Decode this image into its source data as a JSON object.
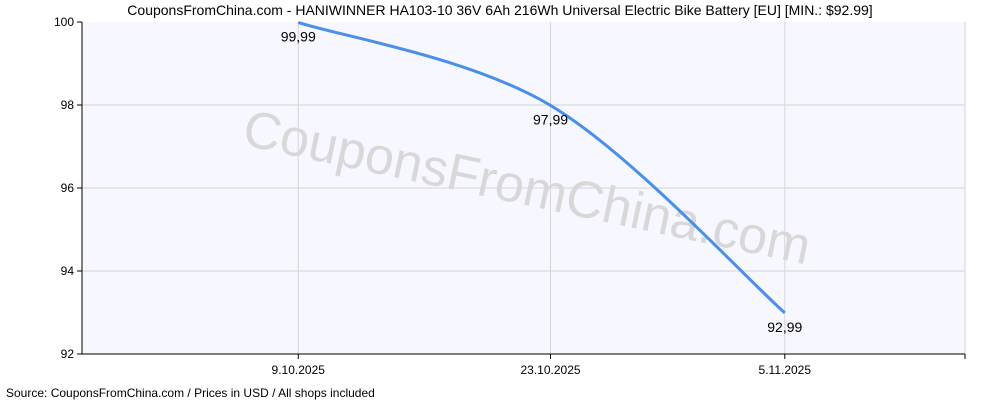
{
  "title": "CouponsFromChina.com - HANIWINNER HA103-10 36V 6Ah 216Wh Universal Electric Bike Battery [EU] [MIN.: $92.99]",
  "source": "Source: CouponsFromChina.com / Prices in USD / All shops included",
  "watermark": "CouponsFromChina.com",
  "colors": {
    "line": "#4a8fe8",
    "plot_background": "#f7f7ff",
    "grid": "#d6d6d6",
    "axis": "#000000"
  },
  "chart_data": {
    "type": "line",
    "title": "CouponsFromChina.com - HANIWINNER HA103-10 36V 6Ah 216Wh Universal Electric Bike Battery [EU] [MIN.: $92.99]",
    "xlabel": "",
    "ylabel": "",
    "x_ticks": [
      "9.10.2025",
      "23.10.2025",
      "5.11.2025"
    ],
    "x_range": [
      "2025-09-27",
      "2025-11-15"
    ],
    "ylim": [
      92,
      100
    ],
    "y_ticks": [
      92,
      94,
      96,
      98,
      100
    ],
    "grid": true,
    "series": [
      {
        "points": [
          {
            "date": "2025-10-09",
            "value": 99.99,
            "label": "99,99"
          },
          {
            "date": "2025-10-23",
            "value": 97.99,
            "label": "97,99"
          },
          {
            "date": "2025-11-05",
            "value": 92.99,
            "label": "92,99"
          }
        ]
      }
    ]
  }
}
